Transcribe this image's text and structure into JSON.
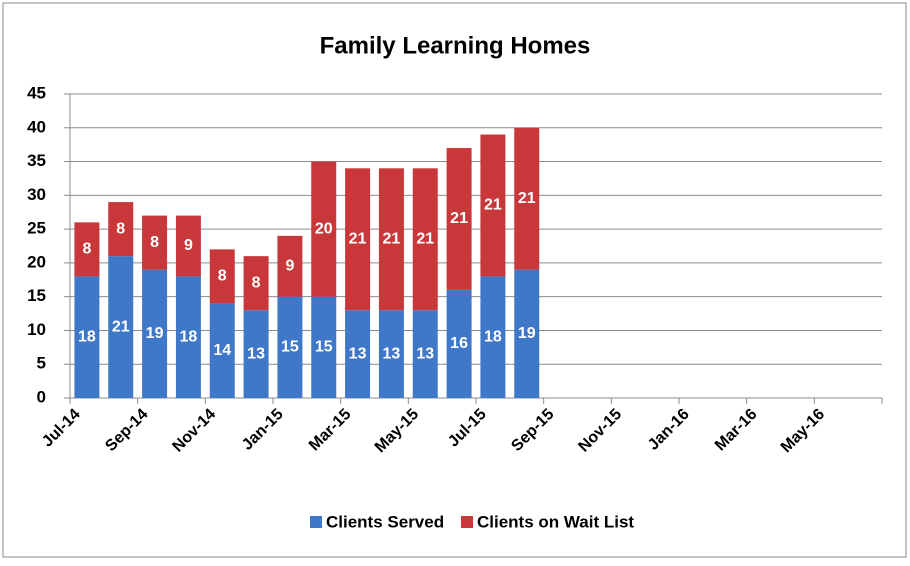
{
  "chart_data": {
    "type": "stacked-bar",
    "title": "Family Learning Homes",
    "categories": [
      "Jul-14",
      null,
      "Sep-14",
      null,
      "Nov-14",
      null,
      "Jan-15",
      null,
      "Mar-15",
      null,
      "May-15",
      null,
      "Jul-15",
      null,
      "Sep-15",
      null,
      "Nov-15",
      null,
      "Jan-16",
      null,
      "Mar-16",
      null,
      "May-16",
      null
    ],
    "series": [
      {
        "name": "Clients Served",
        "color": "#3f78c8",
        "values": [
          18,
          21,
          19,
          18,
          14,
          13,
          15,
          15,
          13,
          13,
          13,
          16,
          18,
          19,
          null,
          null,
          null,
          null,
          null,
          null,
          null,
          null,
          null,
          null
        ]
      },
      {
        "name": "Clients on Wait List",
        "color": "#c8383a",
        "values": [
          8,
          8,
          8,
          9,
          8,
          8,
          9,
          20,
          21,
          21,
          21,
          21,
          21,
          21,
          null,
          null,
          null,
          null,
          null,
          null,
          null,
          null,
          null,
          null
        ]
      }
    ],
    "ylim": [
      0,
      45
    ],
    "yticks": [
      0,
      5,
      10,
      15,
      20,
      25,
      30,
      35,
      40,
      45
    ],
    "grid": true,
    "legend": "bottom"
  }
}
